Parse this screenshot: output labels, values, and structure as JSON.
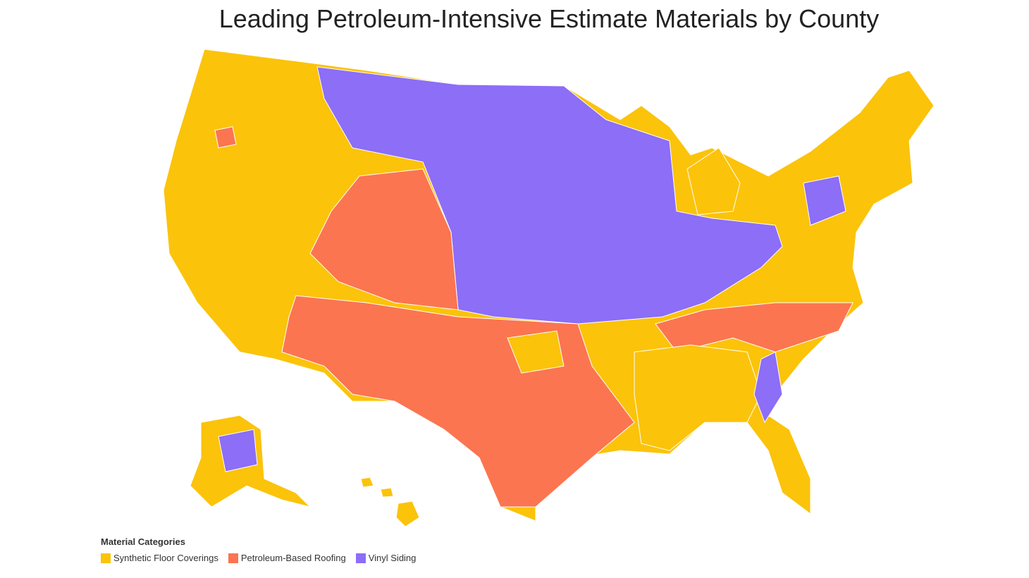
{
  "title": "Leading Petroleum-Intensive Estimate Materials by County",
  "legend": {
    "title": "Material Categories",
    "items": [
      {
        "name": "Synthetic Floor Coverings",
        "color": "#fbc30a"
      },
      {
        "name": "Petroleum-Based Roofing",
        "color": "#fb7550"
      },
      {
        "name": "Vinyl Siding",
        "color": "#8c6ef7"
      }
    ]
  }
}
